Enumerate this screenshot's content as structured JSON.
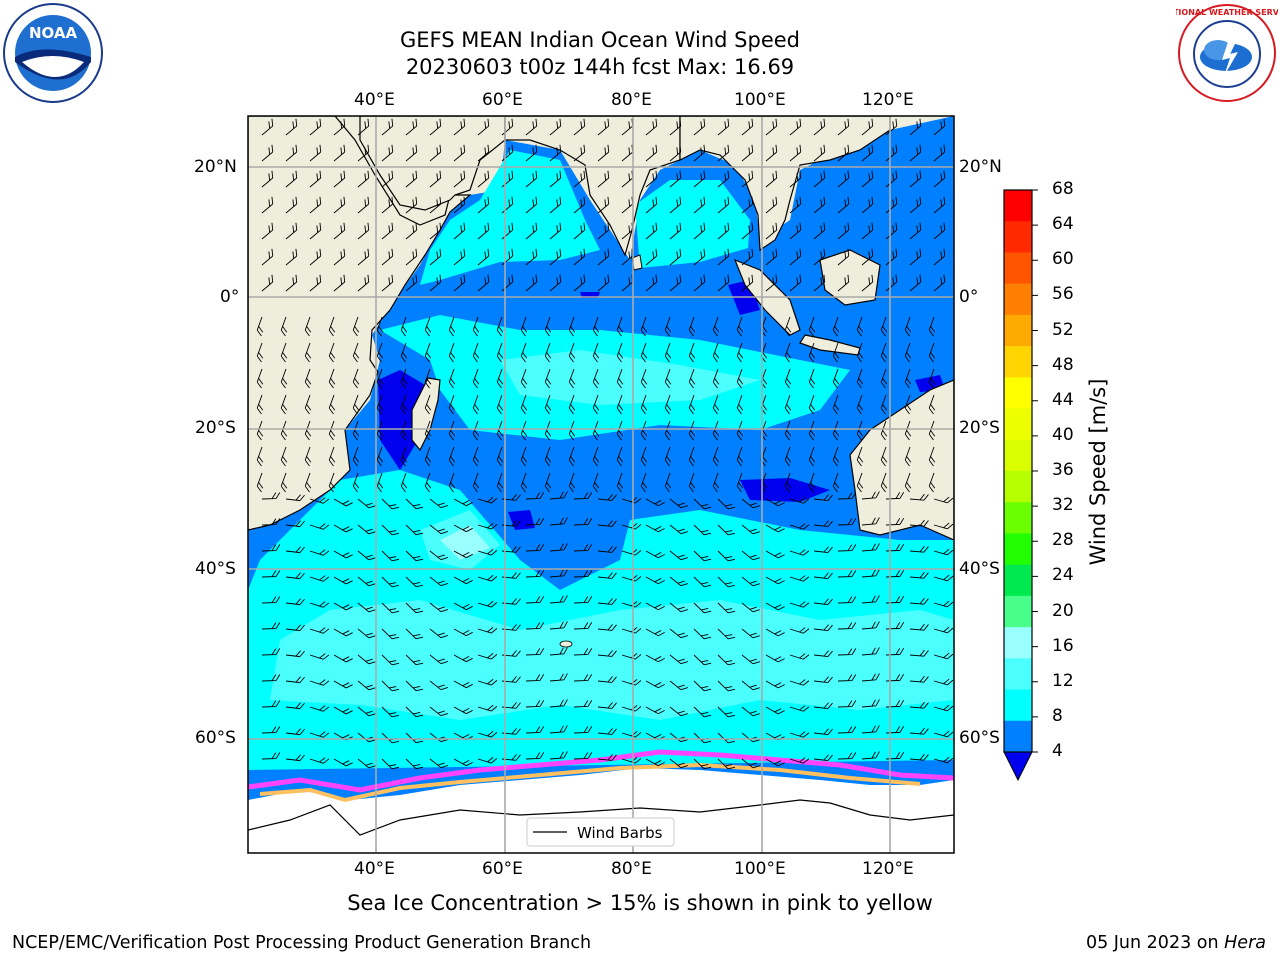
{
  "header": {
    "title_line1": "GEFS MEAN Indian Ocean Wind Speed",
    "title_line2": "20230603 t00z 144h fcst   Max: 16.69"
  },
  "logos": {
    "left": {
      "text": "NOAA",
      "icon": "noaa-logo-icon"
    },
    "right": {
      "text": "NATIONAL WEATHER SERVICE",
      "icon": "nws-logo-icon"
    }
  },
  "map": {
    "lon_labels": [
      "40°E",
      "60°E",
      "80°E",
      "100°E",
      "120°E"
    ],
    "lat_labels": [
      "20°N",
      "0°",
      "20°S",
      "40°S",
      "60°S"
    ],
    "legend_label": "Wind Barbs"
  },
  "colorbar": {
    "label": "Wind Speed [m/s]",
    "ticks": [
      "68",
      "64",
      "60",
      "56",
      "52",
      "48",
      "44",
      "40",
      "36",
      "32",
      "28",
      "24",
      "20",
      "16",
      "12",
      "8",
      "4"
    ],
    "colors": [
      "#ff0000",
      "#ff2a00",
      "#ff5500",
      "#ff8000",
      "#ffaa00",
      "#ffd400",
      "#ffff00",
      "#eeff00",
      "#d9ff00",
      "#b5ff00",
      "#6cff00",
      "#22ff00",
      "#00e94e",
      "#49ff8c",
      "#99ffff",
      "#4cffff",
      "#00ffff",
      "#0080ff"
    ],
    "extend_color": "#0000ee"
  },
  "notes": {
    "sea_ice": "Sea Ice Concentration > 15% is shown in pink to yellow"
  },
  "footer": {
    "left": "NCEP/EMC/Verification Post Processing Product Generation Branch",
    "right_date": "05 Jun 2023 on ",
    "right_host": "Hera"
  }
}
